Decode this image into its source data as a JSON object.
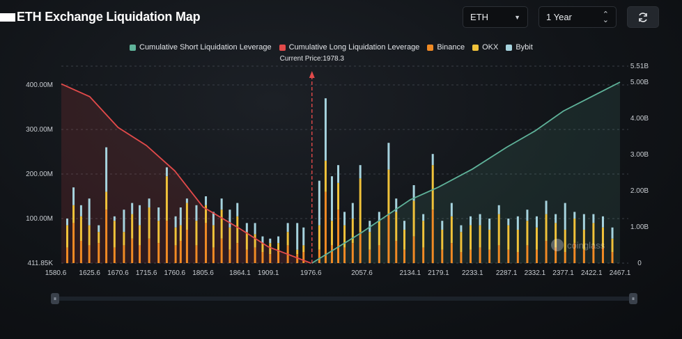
{
  "header": {
    "title": "ETH Exchange Liquidation Map"
  },
  "controls": {
    "coin": {
      "value": "ETH"
    },
    "period": {
      "value": "1 Year"
    },
    "refresh": {
      "icon": "refresh-icon"
    }
  },
  "colors": {
    "short": "#5fb39a",
    "long": "#e24a4a",
    "binance": "#f08a24",
    "okx": "#f0c23a",
    "bybit": "#a6d3de"
  },
  "watermark": "coinglass",
  "chart_data": {
    "type": "bar",
    "title": "ETH Exchange Liquidation Map",
    "current_price_label": "Current Price:1978.3",
    "current_price": 1978.3,
    "x_range": [
      1580.6,
      2467.1
    ],
    "x_ticks": [
      1580.6,
      1625.6,
      1670.6,
      1715.6,
      1760.6,
      1805.6,
      1864.1,
      1909.1,
      1976.6,
      2057.6,
      2134.1,
      2179.1,
      2233.1,
      2287.1,
      2332.1,
      2377.1,
      2422.1,
      2467.1
    ],
    "left_axis": {
      "ticks": [
        "411.85K",
        "100.00M",
        "200.00M",
        "300.00M",
        "400.00M"
      ],
      "range": [
        0,
        400
      ]
    },
    "right_axis": {
      "ticks": [
        "0",
        "1.00B",
        "2.00B",
        "3.00B",
        "4.00B",
        "5.00B",
        "5.51B"
      ],
      "range": [
        0,
        5.51
      ]
    },
    "legend": [
      {
        "name": "Cumulative Short Liquidation Leverage",
        "color": "#5fb39a"
      },
      {
        "name": "Cumulative Long Liquidation Leverage",
        "color": "#e24a4a"
      },
      {
        "name": "Binance",
        "color": "#f08a24"
      },
      {
        "name": "OKX",
        "color": "#f0c23a"
      },
      {
        "name": "Bybit",
        "color": "#a6d3de"
      }
    ],
    "long_cumulative": {
      "x": [
        1580.6,
        1625.6,
        1670.6,
        1715.6,
        1760.6,
        1805.6,
        1864.1,
        1909.1,
        1976.6
      ],
      "y": [
        4.95,
        4.6,
        3.75,
        3.25,
        2.55,
        1.55,
        0.95,
        0.45,
        0.0
      ]
    },
    "short_cumulative": {
      "x": [
        1978.3,
        2057.6,
        2134.1,
        2179.1,
        2233.1,
        2287.1,
        2332.1,
        2377.1,
        2422.1,
        2467.1
      ],
      "y": [
        0.0,
        0.85,
        1.75,
        2.1,
        2.6,
        3.2,
        3.65,
        4.2,
        4.6,
        5.0
      ]
    },
    "bars": {
      "unit": "M",
      "x": [
        1590,
        1600,
        1612,
        1625,
        1640,
        1652,
        1665,
        1680,
        1693,
        1705,
        1720,
        1735,
        1748,
        1762,
        1770,
        1780,
        1795,
        1810,
        1822,
        1835,
        1848,
        1860,
        1875,
        1888,
        1900,
        1912,
        1925,
        1940,
        1955,
        1965,
        1990,
        2000,
        2010,
        2020,
        2030,
        2043,
        2055,
        2070,
        2085,
        2100,
        2112,
        2125,
        2140,
        2155,
        2170,
        2185,
        2200,
        2215,
        2230,
        2245,
        2260,
        2275,
        2290,
        2305,
        2320,
        2335,
        2350,
        2365,
        2380,
        2395,
        2410,
        2425,
        2440,
        2455
      ],
      "binance": [
        35,
        90,
        50,
        40,
        45,
        120,
        35,
        40,
        55,
        40,
        55,
        45,
        95,
        40,
        50,
        75,
        40,
        90,
        35,
        55,
        30,
        45,
        30,
        35,
        25,
        20,
        25,
        40,
        20,
        25,
        30,
        160,
        40,
        120,
        35,
        45,
        70,
        30,
        40,
        110,
        50,
        30,
        60,
        35,
        120,
        30,
        45,
        25,
        30,
        35,
        30,
        40,
        30,
        25,
        40,
        30,
        50,
        35,
        25,
        45,
        30,
        40,
        35,
        25
      ],
      "okx": [
        50,
        40,
        55,
        45,
        25,
        40,
        60,
        30,
        55,
        45,
        70,
        50,
        100,
        40,
        35,
        60,
        55,
        40,
        50,
        65,
        50,
        60,
        40,
        30,
        20,
        25,
        20,
        30,
        10,
        15,
        55,
        70,
        55,
        60,
        50,
        55,
        120,
        40,
        55,
        100,
        65,
        45,
        80,
        60,
        100,
        45,
        60,
        45,
        55,
        50,
        45,
        70,
        55,
        50,
        55,
        50,
        60,
        55,
        50,
        55,
        45,
        50,
        45,
        30
      ],
      "bybit": [
        15,
        40,
        25,
        60,
        15,
        100,
        10,
        50,
        25,
        45,
        20,
        30,
        20,
        25,
        40,
        10,
        35,
        20,
        30,
        25,
        40,
        30,
        20,
        25,
        15,
        10,
        15,
        20,
        60,
        40,
        100,
        140,
        100,
        40,
        30,
        35,
        30,
        25,
        20,
        60,
        30,
        20,
        35,
        15,
        25,
        20,
        30,
        15,
        20,
        25,
        25,
        20,
        15,
        30,
        25,
        25,
        30,
        20,
        60,
        15,
        35,
        20,
        25,
        25
      ]
    }
  }
}
